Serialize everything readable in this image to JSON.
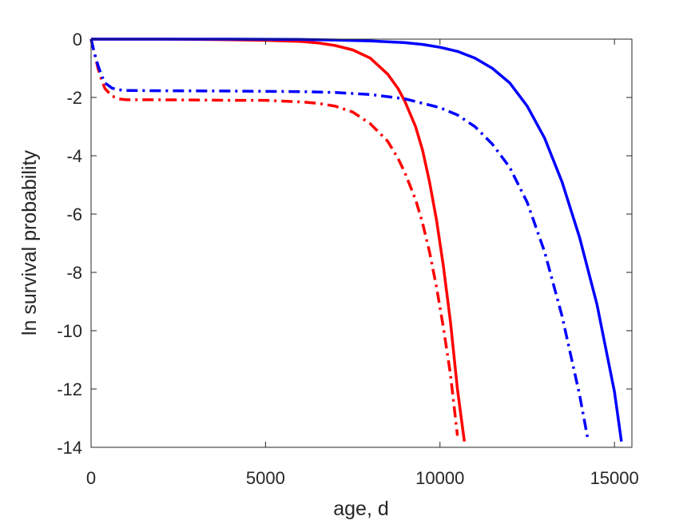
{
  "chart_data": {
    "type": "line",
    "title": "",
    "xlabel": "age, d",
    "ylabel": "ln survival probability",
    "xlim": [
      0,
      15500
    ],
    "ylim": [
      -14,
      0
    ],
    "xticks": [
      0,
      5000,
      10000,
      15000
    ],
    "xtick_labels": [
      "0",
      "5000",
      "10000",
      "15000"
    ],
    "yticks": [
      0,
      -2,
      -4,
      -6,
      -8,
      -10,
      -12,
      -14
    ],
    "ytick_labels": [
      "0",
      "-2",
      "-4",
      "-6",
      "-8",
      "-10",
      "-12",
      "-14"
    ],
    "grid": false,
    "legend": "none",
    "series": [
      {
        "color": "#ff0000",
        "style": "solid",
        "x": [
          0,
          2000,
          4000,
          5000,
          6000,
          6500,
          7000,
          7500,
          8000,
          8500,
          8800,
          9000,
          9300,
          9500,
          9700,
          9900,
          10100,
          10300,
          10500,
          10700
        ],
        "y": [
          0,
          0,
          -0.02,
          -0.04,
          -0.08,
          -0.13,
          -0.22,
          -0.37,
          -0.65,
          -1.2,
          -1.7,
          -2.15,
          -3.0,
          -3.8,
          -4.9,
          -6.2,
          -7.8,
          -9.7,
          -12.0,
          -13.8
        ]
      },
      {
        "color": "#ff0000",
        "style": "dashdot",
        "x": [
          0,
          100,
          200,
          300,
          400,
          600,
          800,
          1000,
          2000,
          4000,
          5000,
          6000,
          6500,
          7000,
          7500,
          8000,
          8500,
          8800,
          9000,
          9300,
          9500,
          9700,
          9900,
          10100,
          10300,
          10500
        ],
        "y": [
          0,
          -0.5,
          -1.0,
          -1.4,
          -1.7,
          -1.95,
          -2.05,
          -2.08,
          -2.08,
          -2.1,
          -2.1,
          -2.15,
          -2.2,
          -2.3,
          -2.5,
          -2.9,
          -3.5,
          -4.1,
          -4.6,
          -5.5,
          -6.3,
          -7.3,
          -8.5,
          -9.9,
          -11.5,
          -13.6
        ]
      },
      {
        "color": "#0000ff",
        "style": "solid",
        "x": [
          0,
          4000,
          6000,
          7000,
          8000,
          9000,
          9500,
          10000,
          10500,
          11000,
          11500,
          12000,
          12500,
          13000,
          13500,
          14000,
          14500,
          15000,
          15200
        ],
        "y": [
          0,
          0,
          -0.01,
          -0.03,
          -0.06,
          -0.12,
          -0.18,
          -0.28,
          -0.42,
          -0.65,
          -1.0,
          -1.5,
          -2.3,
          -3.4,
          -4.9,
          -6.8,
          -9.1,
          -12.1,
          -13.8
        ]
      },
      {
        "color": "#0000ff",
        "style": "dashdot",
        "x": [
          0,
          100,
          200,
          300,
          400,
          600,
          800,
          1000,
          2000,
          4000,
          6000,
          7000,
          8000,
          9000,
          10000,
          10500,
          11000,
          11500,
          12000,
          12500,
          13000,
          13500,
          14000,
          14250
        ],
        "y": [
          0,
          -0.5,
          -0.9,
          -1.25,
          -1.5,
          -1.68,
          -1.74,
          -1.76,
          -1.77,
          -1.78,
          -1.8,
          -1.83,
          -1.9,
          -2.05,
          -2.35,
          -2.6,
          -3.0,
          -3.6,
          -4.4,
          -5.6,
          -7.3,
          -9.5,
          -12.2,
          -13.8
        ]
      }
    ]
  }
}
